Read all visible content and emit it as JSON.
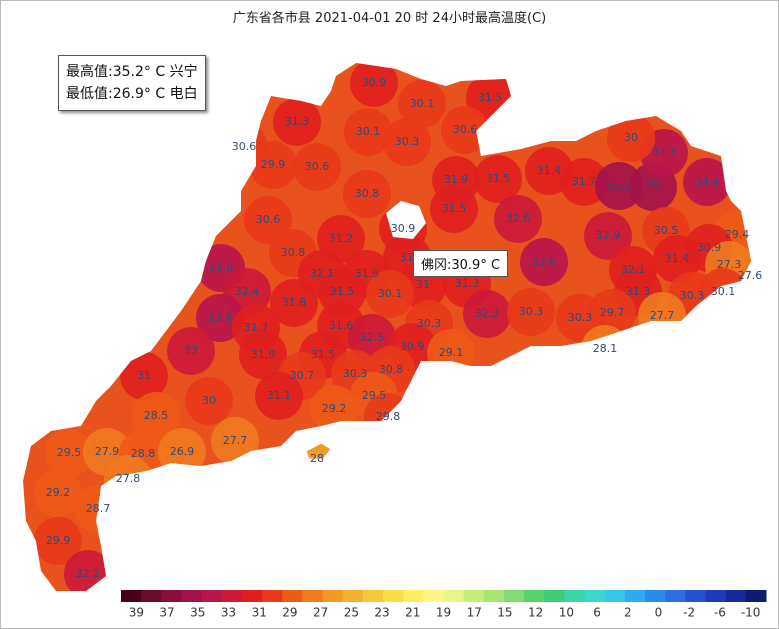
{
  "title": "广东省各市县 2021-04-01 20 时 24小时最高温度(C)",
  "summary": {
    "max": "最高值:35.2° C 兴宁",
    "min": "最低值:26.9° C 电白"
  },
  "tooltip": "佛冈:30.9° C",
  "stations": [
    30.9,
    30.1,
    31.5,
    31.3,
    30.1,
    30.3,
    30.6,
    30.6,
    29.9,
    30.6,
    31.9,
    31.5,
    31.4,
    31.7,
    30.8,
    35.2,
    35,
    34.4,
    34.3,
    30,
    31.5,
    32.6,
    30.6,
    30.9,
    31.2,
    32.9,
    30.5,
    29.4,
    30.9,
    30.8,
    31.9,
    32.1,
    31,
    33.8,
    31.3,
    33.6,
    32.1,
    31.4,
    27.3,
    27.6,
    31.5,
    31,
    30.1,
    32.4,
    31.8,
    31.3,
    30.3,
    30.1,
    33.8,
    31.7,
    31.6,
    30.3,
    32.3,
    30.3,
    29.7,
    30.3,
    27.7,
    33,
    31.5,
    31.9,
    32.5,
    30.9,
    29.1,
    28.1,
    31,
    30.7,
    30.3,
    30.8,
    30,
    31.1,
    29.5,
    29.2,
    29.8,
    28.5,
    27.7,
    29.5,
    27.9,
    28.8,
    26.9,
    28,
    27.8,
    29.2,
    28.7,
    29.9,
    32.2
  ],
  "legend": {
    "ticks": [
      39,
      37,
      35,
      33,
      31,
      29,
      27,
      25,
      23,
      21,
      19,
      17,
      15,
      12,
      10,
      6,
      2,
      0,
      -2,
      -6,
      -10
    ],
    "colors": [
      "#4a0016",
      "#6b0a2a",
      "#8a0e3a",
      "#a3124a",
      "#b8154c",
      "#cc1a3a",
      "#e0201f",
      "#e8381a",
      "#ee5a18",
      "#f07a1f",
      "#f39a25",
      "#f5b12d",
      "#f7c836",
      "#f9dd45",
      "#fbee60",
      "#fbf58a",
      "#e8f58a",
      "#c8ee7a",
      "#a8e472",
      "#7fdc6e",
      "#55d26a",
      "#40cc78",
      "#3cd4a8",
      "#3ad6d2",
      "#36c8ec",
      "#30aaf0",
      "#2a8ce8",
      "#2a6ee0",
      "#2452d0",
      "#1f3cb8",
      "#182a9a",
      "#101a70"
    ]
  }
}
